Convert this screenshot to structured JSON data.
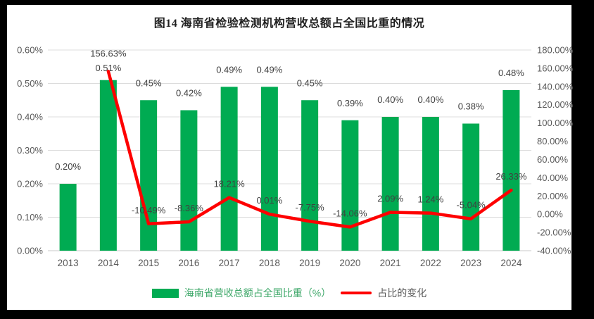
{
  "page": {
    "background_color": "#000000",
    "card_color": "#ffffff"
  },
  "chart": {
    "title": "图14 海南省检验检测机构营收总额占全国比重的情况",
    "legend": [
      {
        "label": "海南省营收总额占全国比重（%）",
        "swatch": "bar",
        "color": "#00AB52",
        "label_color": "#3FA86A"
      },
      {
        "label": "占比的变化",
        "swatch": "line",
        "color": "#FE0000",
        "label_color": "#595959"
      }
    ]
  },
  "chart_data": {
    "type": "bar",
    "subtype": "combo bar+line, dual axis",
    "title": "图14 海南省检验检测机构营收总额占全国比重的情况",
    "categories": [
      "2013",
      "2014",
      "2015",
      "2016",
      "2017",
      "2018",
      "2019",
      "2020",
      "2021",
      "2022",
      "2023",
      "2024"
    ],
    "series": [
      {
        "name": "海南省营收总额占全国比重（%）",
        "type": "bar",
        "axis": "left",
        "color": "#00AB52",
        "values": [
          0.2,
          0.51,
          0.45,
          0.42,
          0.49,
          0.49,
          0.45,
          0.39,
          0.4,
          0.4,
          0.38,
          0.48
        ],
        "labels": [
          "0.20%",
          "0.51%",
          "0.45%",
          "0.42%",
          "0.49%",
          "0.49%",
          "0.45%",
          "0.39%",
          "0.40%",
          "0.40%",
          "0.38%",
          "0.48%"
        ]
      },
      {
        "name": "占比的变化",
        "type": "line",
        "axis": "right",
        "color": "#FE0000",
        "values": [
          null,
          156.63,
          -10.49,
          -8.36,
          18.21,
          0.01,
          -7.75,
          -14.06,
          2.09,
          1.24,
          -5.04,
          26.33
        ],
        "labels": [
          null,
          "156.63%",
          "-10.49%",
          "-8.36%",
          "18.21%",
          "0.01%",
          "-7.75%",
          "-14.06%",
          "2.09%",
          "1.24%",
          "-5.04%",
          "26.33%"
        ]
      }
    ],
    "left_axis": {
      "min": 0,
      "max": 0.6,
      "ticks_top_to_bottom": [
        "0.60%",
        "0.50%",
        "0.40%",
        "0.30%",
        "0.20%",
        "0.10%",
        "0.00%"
      ]
    },
    "right_axis": {
      "min": -40,
      "max": 180,
      "ticks_top_to_bottom": [
        "180.00%",
        "160.00%",
        "140.00%",
        "120.00%",
        "100.00%",
        "80.00%",
        "60.00%",
        "40.00%",
        "20.00%",
        "0.00%",
        "-20.00%",
        "-40.00%"
      ]
    },
    "grid": "horizontal gridlines aligned to left axis",
    "legend_position": "bottom",
    "grid_color": "#dcdcdc",
    "axis_line_color": "#c9c9c9"
  }
}
